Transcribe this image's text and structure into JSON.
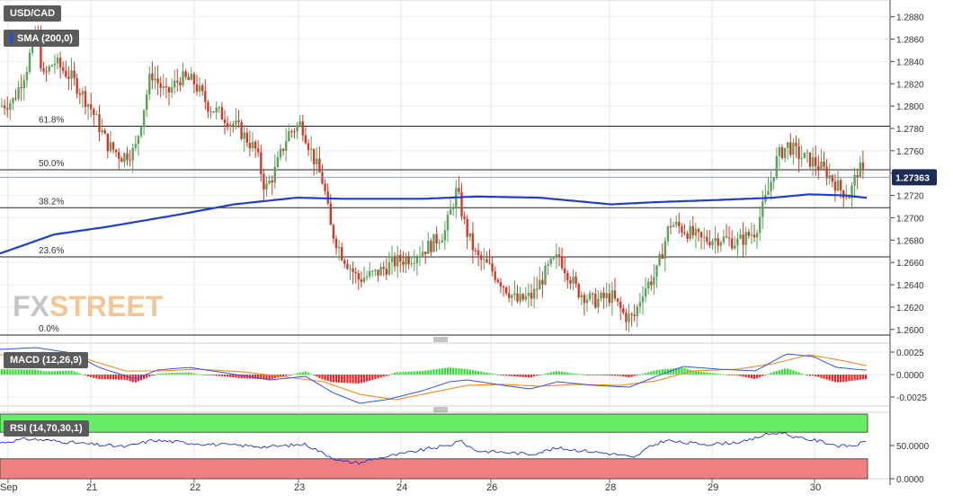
{
  "header": {
    "symbol": "USD/CAD",
    "sma_label": "SMA (200,0)",
    "price_label": "1.27363",
    "watermark_fx": "FX",
    "watermark_street": "STREET"
  },
  "colors": {
    "up": "#5aa35a",
    "down": "#cf3b2b",
    "sma": "#1f3fc8",
    "fib": "#222222",
    "macd_line": "#3355dd",
    "signal_line": "#f08a24",
    "hist_pos": "#33dd33",
    "hist_neg": "#ee2222",
    "rsi_line": "#2233cc",
    "rsi_overbought": "#66ee66",
    "rsi_oversold": "#f08080",
    "price_tag": "#1e2c55"
  },
  "xaxis": {
    "labels": [
      "Sep",
      "21",
      "22",
      "23",
      "24",
      "26",
      "28",
      "29",
      "30"
    ]
  },
  "chart_data": [
    {
      "type": "candlestick",
      "title": "USD/CAD",
      "ylim": [
        1.2595,
        1.2895
      ],
      "yticks": [
        1.26,
        1.262,
        1.264,
        1.266,
        1.268,
        1.27,
        1.272,
        1.274,
        1.276,
        1.278,
        1.28,
        1.282,
        1.284,
        1.286,
        1.288
      ],
      "ytick_labels": [
        "1.2600",
        "1.2620",
        "1.2640",
        "1.2660",
        "1.2680",
        "1.2700",
        "1.2720",
        "1.2740",
        "1.2760",
        "1.2780",
        "1.2800",
        "1.2820",
        "1.2840",
        "1.2860",
        "1.2880"
      ],
      "current_price": 1.27363,
      "fib_levels": [
        {
          "label": "61.8%",
          "value": 1.2782
        },
        {
          "label": "50.0%",
          "value": 1.2743
        },
        {
          "label": "38.2%",
          "value": 1.2709
        },
        {
          "label": "23.6%",
          "value": 1.2665
        },
        {
          "label": "0.0%",
          "value": 1.2595
        }
      ],
      "series": [
        {
          "name": "SMA (200,0)",
          "keypoints": [
            [
              0,
              1.2668
            ],
            [
              60,
              1.2685
            ],
            [
              120,
              1.2692
            ],
            [
              200,
              1.2703
            ],
            [
              260,
              1.2712
            ],
            [
              330,
              1.2718
            ],
            [
              380,
              1.2717
            ],
            [
              470,
              1.2717
            ],
            [
              530,
              1.2719
            ],
            [
              600,
              1.2718
            ],
            [
              680,
              1.2712
            ],
            [
              730,
              1.2714
            ],
            [
              800,
              1.2716
            ],
            [
              860,
              1.2718
            ],
            [
              900,
              1.2721
            ],
            [
              940,
              1.272
            ],
            [
              962,
              1.2718
            ]
          ]
        }
      ],
      "path_keypoints": [
        [
          0,
          1.28
        ],
        [
          15,
          1.2805
        ],
        [
          30,
          1.2835
        ],
        [
          40,
          1.287
        ],
        [
          48,
          1.2825
        ],
        [
          60,
          1.284
        ],
        [
          80,
          1.2825
        ],
        [
          100,
          1.28
        ],
        [
          120,
          1.2765
        ],
        [
          135,
          1.2755
        ],
        [
          150,
          1.276
        ],
        [
          168,
          1.283
        ],
        [
          185,
          1.281
        ],
        [
          200,
          1.2825
        ],
        [
          215,
          1.2822
        ],
        [
          232,
          1.28
        ],
        [
          250,
          1.279
        ],
        [
          265,
          1.278
        ],
        [
          285,
          1.276
        ],
        [
          295,
          1.2725
        ],
        [
          305,
          1.274
        ],
        [
          320,
          1.2775
        ],
        [
          335,
          1.2785
        ],
        [
          348,
          1.2755
        ],
        [
          360,
          1.273
        ],
        [
          368,
          1.269
        ],
        [
          380,
          1.2668
        ],
        [
          398,
          1.2645
        ],
        [
          418,
          1.265
        ],
        [
          438,
          1.266
        ],
        [
          458,
          1.2665
        ],
        [
          478,
          1.2675
        ],
        [
          495,
          1.2688
        ],
        [
          508,
          1.2725
        ],
        [
          518,
          1.269
        ],
        [
          530,
          1.2665
        ],
        [
          545,
          1.2655
        ],
        [
          560,
          1.264
        ],
        [
          575,
          1.2625
        ],
        [
          592,
          1.263
        ],
        [
          610,
          1.2655
        ],
        [
          622,
          1.2665
        ],
        [
          632,
          1.265
        ],
        [
          642,
          1.2635
        ],
        [
          660,
          1.2625
        ],
        [
          680,
          1.263
        ],
        [
          695,
          1.2612
        ],
        [
          705,
          1.261
        ],
        [
          715,
          1.2635
        ],
        [
          730,
          1.265
        ],
        [
          745,
          1.2695
        ],
        [
          760,
          1.269
        ],
        [
          780,
          1.268
        ],
        [
          800,
          1.2682
        ],
        [
          820,
          1.2678
        ],
        [
          840,
          1.2688
        ],
        [
          855,
          1.2725
        ],
        [
          865,
          1.2755
        ],
        [
          876,
          1.2765
        ],
        [
          890,
          1.2755
        ],
        [
          905,
          1.275
        ],
        [
          920,
          1.274
        ],
        [
          935,
          1.2725
        ],
        [
          945,
          1.272
        ],
        [
          955,
          1.2745
        ],
        [
          962,
          1.2736
        ]
      ]
    },
    {
      "type": "histogram+line",
      "title": "MACD (12,26,9)",
      "ylim": [
        -0.0035,
        0.0035
      ],
      "yticks": [
        0.0025,
        0,
        -0.0025
      ],
      "ytick_labels": [
        "0.0025",
        "0.0000",
        "-0.0025"
      ],
      "series": [
        {
          "name": "MACD",
          "keypoints": [
            [
              0,
              0.0028
            ],
            [
              40,
              0.003
            ],
            [
              80,
              0.0024
            ],
            [
              110,
              0.0008
            ],
            [
              150,
              -0.0005
            ],
            [
              175,
              0.0005
            ],
            [
              210,
              0.0008
            ],
            [
              250,
              0.0002
            ],
            [
              300,
              -0.0006
            ],
            [
              340,
              -0.0002
            ],
            [
              370,
              -0.002
            ],
            [
              400,
              -0.0032
            ],
            [
              430,
              -0.0028
            ],
            [
              470,
              -0.0018
            ],
            [
              500,
              -0.0008
            ],
            [
              520,
              -0.0006
            ],
            [
              560,
              -0.0012
            ],
            [
              590,
              -0.0016
            ],
            [
              620,
              -0.0008
            ],
            [
              660,
              -0.0012
            ],
            [
              700,
              -0.0014
            ],
            [
              730,
              -0.0002
            ],
            [
              760,
              0.0009
            ],
            [
              800,
              0.0006
            ],
            [
              840,
              0.0004
            ],
            [
              875,
              0.0023
            ],
            [
              905,
              0.002
            ],
            [
              930,
              0.0008
            ],
            [
              962,
              0.0005
            ]
          ]
        },
        {
          "name": "Signal",
          "keypoints": [
            [
              0,
              0.0022
            ],
            [
              50,
              0.0025
            ],
            [
              100,
              0.0016
            ],
            [
              140,
              0.0004
            ],
            [
              180,
              0.0004
            ],
            [
              220,
              0.0006
            ],
            [
              270,
              0.0003
            ],
            [
              320,
              -0.0003
            ],
            [
              360,
              -0.0008
            ],
            [
              400,
              -0.0022
            ],
            [
              440,
              -0.0028
            ],
            [
              480,
              -0.002
            ],
            [
              520,
              -0.0012
            ],
            [
              560,
              -0.0011
            ],
            [
              600,
              -0.0013
            ],
            [
              640,
              -0.0011
            ],
            [
              690,
              -0.0012
            ],
            [
              730,
              -0.0007
            ],
            [
              770,
              0.0004
            ],
            [
              820,
              0.0006
            ],
            [
              860,
              0.0012
            ],
            [
              900,
              0.0022
            ],
            [
              940,
              0.0015
            ],
            [
              962,
              0.001
            ]
          ]
        }
      ]
    },
    {
      "type": "line",
      "title": "RSI (14,70,30,1)",
      "ylim": [
        0,
        100
      ],
      "yticks": [
        50,
        0
      ],
      "ytick_labels": [
        "50.0000",
        "0.0000"
      ],
      "overbought": 70,
      "oversold": 30,
      "series": [
        {
          "name": "RSI",
          "keypoints": [
            [
              0,
              54
            ],
            [
              30,
              60
            ],
            [
              60,
              57
            ],
            [
              100,
              52
            ],
            [
              140,
              48
            ],
            [
              170,
              58
            ],
            [
              200,
              55
            ],
            [
              230,
              52
            ],
            [
              270,
              50
            ],
            [
              300,
              48
            ],
            [
              340,
              52
            ],
            [
              360,
              38
            ],
            [
              380,
              26
            ],
            [
              400,
              24
            ],
            [
              420,
              31
            ],
            [
              450,
              38
            ],
            [
              480,
              46
            ],
            [
              500,
              50
            ],
            [
              510,
              58
            ],
            [
              530,
              42
            ],
            [
              560,
              40
            ],
            [
              590,
              37
            ],
            [
              620,
              46
            ],
            [
              650,
              42
            ],
            [
              690,
              36
            ],
            [
              705,
              31
            ],
            [
              720,
              46
            ],
            [
              740,
              58
            ],
            [
              760,
              54
            ],
            [
              790,
              52
            ],
            [
              830,
              56
            ],
            [
              850,
              66
            ],
            [
              870,
              70
            ],
            [
              885,
              62
            ],
            [
              910,
              57
            ],
            [
              935,
              49
            ],
            [
              950,
              50
            ],
            [
              962,
              55
            ]
          ]
        }
      ]
    }
  ]
}
